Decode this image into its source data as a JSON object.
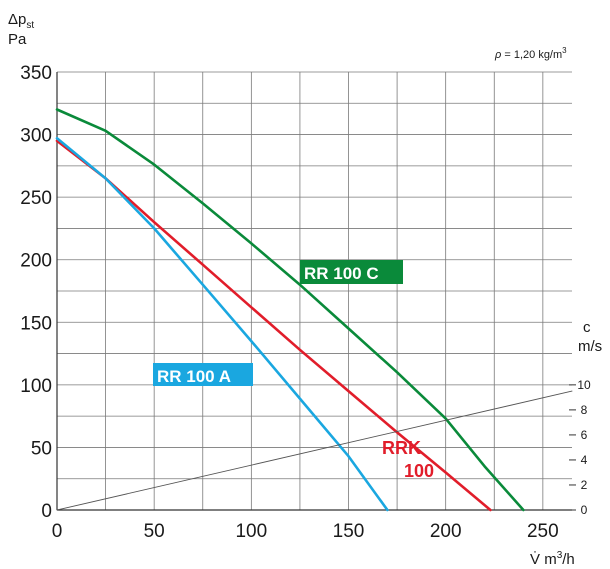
{
  "chart_data": {
    "type": "line",
    "y_axis_label": {
      "main": "Δp",
      "sub": "st",
      "unit": "Pa"
    },
    "x_axis_label": {
      "symbol": "V̇",
      "unit": "m",
      "exp": "3",
      "rest": "/h"
    },
    "right_axis_label": {
      "symbol": "c",
      "unit": "m/s"
    },
    "density_note": {
      "rho": "ρ",
      "text": " = 1,20 kg/m",
      "exp": "3"
    },
    "xlim": [
      0,
      265
    ],
    "ylim": [
      0,
      350
    ],
    "x_ticks": [
      0,
      50,
      100,
      150,
      200,
      250
    ],
    "y_ticks": [
      0,
      50,
      100,
      150,
      200,
      250,
      300,
      350
    ],
    "right_ticks": [
      0,
      2,
      4,
      6,
      8,
      10
    ],
    "right_tick_y_values": [
      0,
      20,
      40,
      60,
      80,
      100
    ],
    "grid": true,
    "series": [
      {
        "name": "RR 100 C",
        "label_lines": [
          "RR 100 C"
        ],
        "label_style": "box",
        "color": "#0a8a3a",
        "x": [
          0,
          25,
          50,
          75,
          100,
          125,
          150,
          175,
          200,
          220,
          240
        ],
        "y": [
          320,
          303,
          276,
          245,
          213,
          180,
          145,
          110,
          73,
          35,
          0
        ]
      },
      {
        "name": "RRK 100",
        "label_lines": [
          "RRK",
          "100"
        ],
        "label_style": "text",
        "color": "#e11d2a",
        "x": [
          0,
          25,
          50,
          75,
          100,
          125,
          150,
          175,
          200,
          223
        ],
        "y": [
          295,
          265,
          230,
          196,
          162,
          128,
          95,
          62,
          30,
          0
        ]
      },
      {
        "name": "RR 100 A",
        "label_lines": [
          "RR 100 A"
        ],
        "label_style": "box",
        "color": "#1aa7e0",
        "x": [
          0,
          25,
          50,
          75,
          100,
          125,
          150,
          170
        ],
        "y": [
          297,
          265,
          225,
          180,
          135,
          89,
          43,
          0
        ]
      },
      {
        "name": "c",
        "label_lines": [],
        "label_style": "none",
        "color": "#555555",
        "x": [
          0,
          265
        ],
        "y": [
          0,
          95
        ]
      }
    ]
  }
}
